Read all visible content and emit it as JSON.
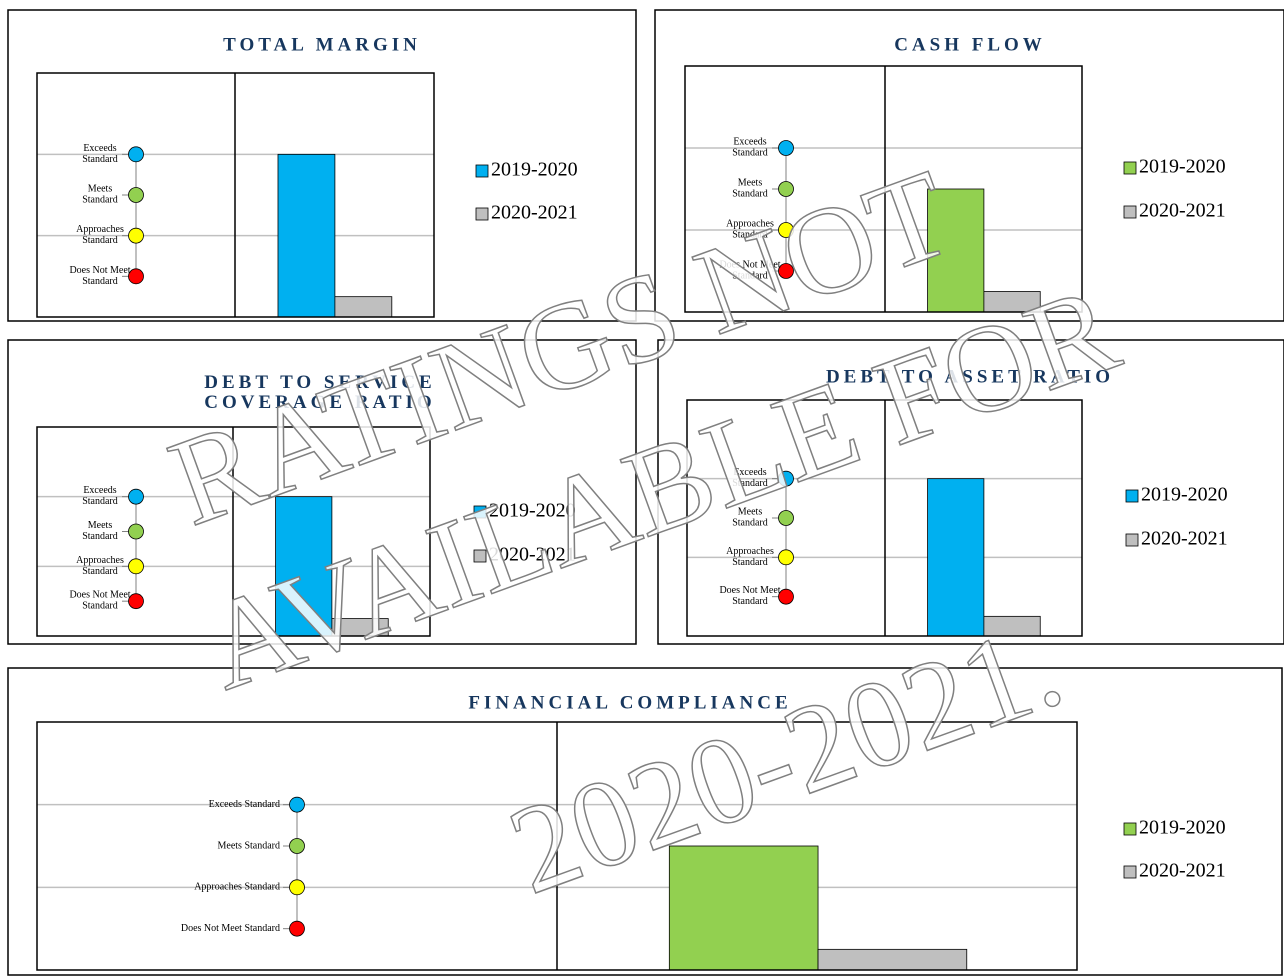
{
  "chart_data": [
    {
      "type": "bar",
      "title": "TOTAL MARGIN",
      "ylim": [
        0,
        6
      ],
      "yticks": [
        {
          "value": 4,
          "label": "Exceeds Standard",
          "color": "#00b0f0"
        },
        {
          "value": 3,
          "label": "Meets Standard",
          "color": "#92d050"
        },
        {
          "value": 2,
          "label": "Approaches Standard",
          "color": "#ffff00"
        },
        {
          "value": 1,
          "label": "Does Not Meet Standard",
          "color": "#ff0000"
        }
      ],
      "grid": [
        4,
        2
      ],
      "series": [
        {
          "name": "2019-2020",
          "color": "#00b0f0",
          "values": [
            4
          ]
        },
        {
          "name": "2020-2021",
          "color": "#bfbfbf",
          "values": [
            0.5
          ]
        }
      ]
    },
    {
      "type": "bar",
      "title": "CASH FLOW",
      "ylim": [
        0,
        6
      ],
      "yticks": [
        {
          "value": 4,
          "label": "Exceeds Standard",
          "color": "#00b0f0"
        },
        {
          "value": 3,
          "label": "Meets Standard",
          "color": "#92d050"
        },
        {
          "value": 2,
          "label": "Approaches Standard",
          "color": "#ffff00"
        },
        {
          "value": 1,
          "label": "Does Not Meet Standard",
          "color": "#ff0000"
        }
      ],
      "grid": [
        4,
        2
      ],
      "series": [
        {
          "name": "2019-2020",
          "color": "#92d050",
          "values": [
            3
          ]
        },
        {
          "name": "2020-2021",
          "color": "#bfbfbf",
          "values": [
            0.5
          ]
        }
      ]
    },
    {
      "type": "bar",
      "title": "DEBT TO SERVICE COVERAGE RATIO",
      "ylim": [
        0,
        6
      ],
      "yticks": [
        {
          "value": 4,
          "label": "Exceeds Standard",
          "color": "#00b0f0"
        },
        {
          "value": 3,
          "label": "Meets Standard",
          "color": "#92d050"
        },
        {
          "value": 2,
          "label": "Approaches Standard",
          "color": "#ffff00"
        },
        {
          "value": 1,
          "label": "Does Not Meet Standard",
          "color": "#ff0000"
        }
      ],
      "grid": [
        4,
        2
      ],
      "series": [
        {
          "name": "2019-2020",
          "color": "#00b0f0",
          "values": [
            4
          ]
        },
        {
          "name": "2020-2021",
          "color": "#bfbfbf",
          "values": [
            0.5
          ]
        }
      ]
    },
    {
      "type": "bar",
      "title": "DEBT TO ASSET RATIO",
      "ylim": [
        0,
        6
      ],
      "yticks": [
        {
          "value": 4,
          "label": "Exceeds Standard",
          "color": "#00b0f0"
        },
        {
          "value": 3,
          "label": "Meets Standard",
          "color": "#92d050"
        },
        {
          "value": 2,
          "label": "Approaches Standard",
          "color": "#ffff00"
        },
        {
          "value": 1,
          "label": "Does Not Meet Standard",
          "color": "#ff0000"
        }
      ],
      "grid": [
        4,
        2
      ],
      "series": [
        {
          "name": "2019-2020",
          "color": "#00b0f0",
          "values": [
            4
          ]
        },
        {
          "name": "2020-2021",
          "color": "#bfbfbf",
          "values": [
            0.5
          ]
        }
      ]
    },
    {
      "type": "bar",
      "title": "FINANCIAL COMPLIANCE",
      "ylim": [
        0,
        6
      ],
      "yticks": [
        {
          "value": 4,
          "label": "Exceeds Standard",
          "color": "#00b0f0"
        },
        {
          "value": 3,
          "label": "Meets Standard",
          "color": "#92d050"
        },
        {
          "value": 2,
          "label": "Approaches Standard",
          "color": "#ffff00"
        },
        {
          "value": 1,
          "label": "Does Not Meet Standard",
          "color": "#ff0000"
        }
      ],
      "grid": [
        4,
        2
      ],
      "series": [
        {
          "name": "2019-2020",
          "color": "#92d050",
          "values": [
            3
          ]
        },
        {
          "name": "2020-2021",
          "color": "#bfbfbf",
          "values": [
            0.5
          ]
        }
      ]
    }
  ],
  "watermark": [
    "RATINGS NOT",
    "AVAILABLE FOR",
    "2020-2021."
  ]
}
